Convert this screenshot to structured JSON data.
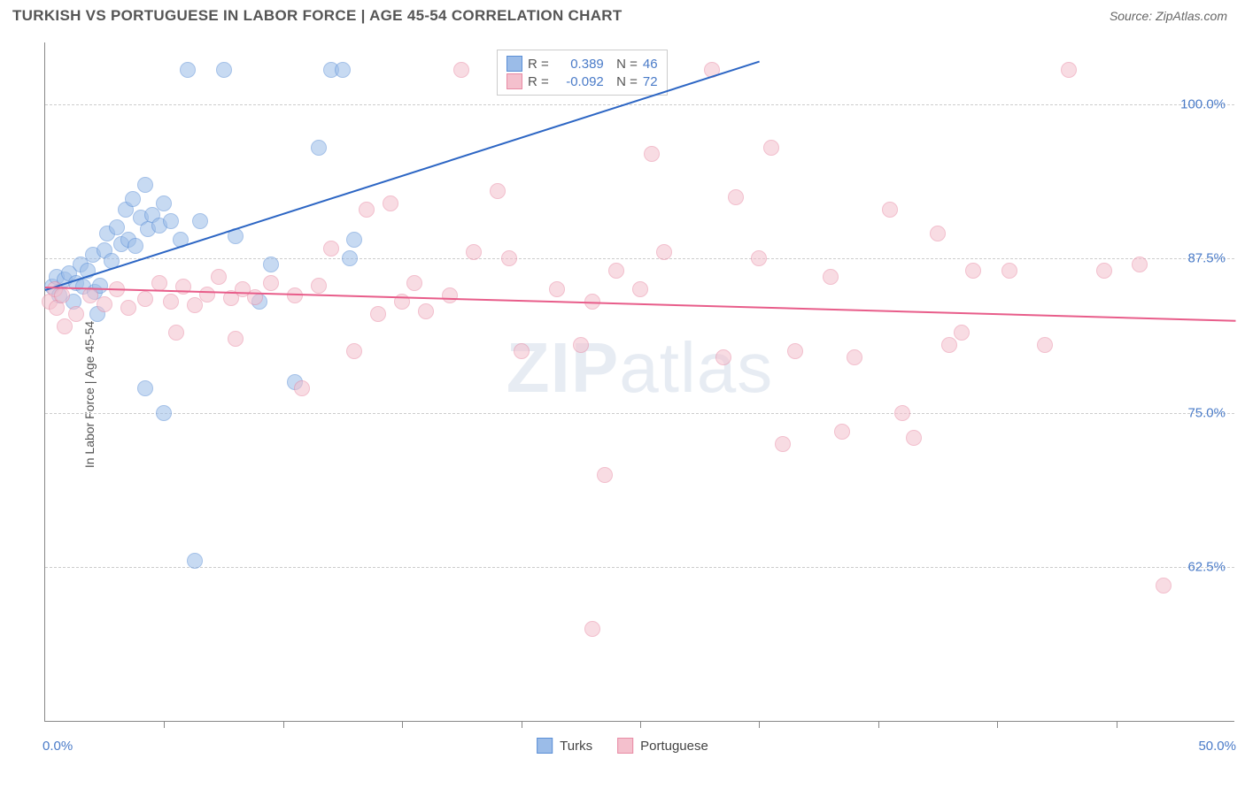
{
  "header": {
    "title": "TURKISH VS PORTUGUESE IN LABOR FORCE | AGE 45-54 CORRELATION CHART",
    "source": "Source: ZipAtlas.com"
  },
  "chart": {
    "type": "scatter",
    "axis_title_y": "In Labor Force | Age 45-54",
    "xlim": [
      0,
      50
    ],
    "ylim": [
      50,
      105
    ],
    "x_ticks": [
      5,
      10,
      15,
      20,
      25,
      30,
      35,
      40,
      45
    ],
    "y_gridlines": [
      62.5,
      75.0,
      87.5,
      100.0
    ],
    "y_tick_labels": [
      "62.5%",
      "75.0%",
      "87.5%",
      "100.0%"
    ],
    "x_label_min": "0.0%",
    "x_label_max": "50.0%",
    "background_color": "#ffffff",
    "grid_color": "#cccccc",
    "axis_color": "#888888",
    "label_color": "#4a7bc8",
    "marker_radius": 9,
    "marker_opacity": 0.55,
    "watermark": "ZIPatlas",
    "series": [
      {
        "name": "Turks",
        "fill_color": "#9bbce8",
        "stroke_color": "#5b8fd6",
        "trend_color": "#2d66c4",
        "r_value": "0.389",
        "n_value": "46",
        "trend": {
          "x1": 0,
          "y1": 85.0,
          "x2": 30,
          "y2": 103.5
        },
        "points": [
          {
            "x": 0.3,
            "y": 85.2
          },
          {
            "x": 0.5,
            "y": 86.0
          },
          {
            "x": 0.6,
            "y": 84.5
          },
          {
            "x": 0.8,
            "y": 85.8
          },
          {
            "x": 1.0,
            "y": 86.3
          },
          {
            "x": 1.2,
            "y": 84.0
          },
          {
            "x": 1.3,
            "y": 85.5
          },
          {
            "x": 1.5,
            "y": 87.0
          },
          {
            "x": 1.6,
            "y": 85.2
          },
          {
            "x": 1.8,
            "y": 86.5
          },
          {
            "x": 2.0,
            "y": 87.8
          },
          {
            "x": 2.1,
            "y": 84.8
          },
          {
            "x": 2.3,
            "y": 85.3
          },
          {
            "x": 2.5,
            "y": 88.2
          },
          {
            "x": 2.6,
            "y": 89.5
          },
          {
            "x": 2.8,
            "y": 87.3
          },
          {
            "x": 3.0,
            "y": 90.0
          },
          {
            "x": 3.2,
            "y": 88.7
          },
          {
            "x": 3.4,
            "y": 91.5
          },
          {
            "x": 3.5,
            "y": 89.0
          },
          {
            "x": 3.7,
            "y": 92.3
          },
          {
            "x": 3.8,
            "y": 88.5
          },
          {
            "x": 4.0,
            "y": 90.8
          },
          {
            "x": 4.2,
            "y": 93.5
          },
          {
            "x": 4.3,
            "y": 89.9
          },
          {
            "x": 4.5,
            "y": 91.0
          },
          {
            "x": 4.8,
            "y": 90.2
          },
          {
            "x": 5.0,
            "y": 92.0
          },
          {
            "x": 5.3,
            "y": 90.5
          },
          {
            "x": 5.7,
            "y": 89.0
          },
          {
            "x": 6.0,
            "y": 102.8
          },
          {
            "x": 6.5,
            "y": 90.5
          },
          {
            "x": 7.5,
            "y": 102.8
          },
          {
            "x": 8.0,
            "y": 89.3
          },
          {
            "x": 4.2,
            "y": 77.0
          },
          {
            "x": 5.0,
            "y": 75.0
          },
          {
            "x": 9.0,
            "y": 84.0
          },
          {
            "x": 9.5,
            "y": 87.0
          },
          {
            "x": 10.5,
            "y": 77.5
          },
          {
            "x": 11.5,
            "y": 96.5
          },
          {
            "x": 12.0,
            "y": 102.8
          },
          {
            "x": 12.5,
            "y": 102.8
          },
          {
            "x": 12.8,
            "y": 87.5
          },
          {
            "x": 13.0,
            "y": 89.0
          },
          {
            "x": 6.3,
            "y": 63.0
          },
          {
            "x": 2.2,
            "y": 83.0
          }
        ]
      },
      {
        "name": "Portuguese",
        "fill_color": "#f4c0cd",
        "stroke_color": "#e88ba5",
        "trend_color": "#e85d8a",
        "r_value": "-0.092",
        "n_value": "72",
        "trend": {
          "x1": 0,
          "y1": 85.2,
          "x2": 50,
          "y2": 82.5
        },
        "points": [
          {
            "x": 0.2,
            "y": 84.0
          },
          {
            "x": 0.4,
            "y": 85.0
          },
          {
            "x": 0.5,
            "y": 83.5
          },
          {
            "x": 0.7,
            "y": 84.5
          },
          {
            "x": 1.3,
            "y": 83.0
          },
          {
            "x": 1.9,
            "y": 84.5
          },
          {
            "x": 2.5,
            "y": 83.8
          },
          {
            "x": 3.0,
            "y": 85.0
          },
          {
            "x": 3.5,
            "y": 83.5
          },
          {
            "x": 4.2,
            "y": 84.2
          },
          {
            "x": 4.8,
            "y": 85.5
          },
          {
            "x": 5.3,
            "y": 84.0
          },
          {
            "x": 5.8,
            "y": 85.2
          },
          {
            "x": 6.3,
            "y": 83.7
          },
          {
            "x": 6.8,
            "y": 84.6
          },
          {
            "x": 7.3,
            "y": 86.0
          },
          {
            "x": 7.8,
            "y": 84.3
          },
          {
            "x": 8.3,
            "y": 85.0
          },
          {
            "x": 8.8,
            "y": 84.4
          },
          {
            "x": 9.5,
            "y": 85.5
          },
          {
            "x": 5.5,
            "y": 81.5
          },
          {
            "x": 8.0,
            "y": 81.0
          },
          {
            "x": 10.5,
            "y": 84.5
          },
          {
            "x": 11.5,
            "y": 85.3
          },
          {
            "x": 12.0,
            "y": 88.3
          },
          {
            "x": 13.5,
            "y": 91.5
          },
          {
            "x": 14.0,
            "y": 83.0
          },
          {
            "x": 14.5,
            "y": 92.0
          },
          {
            "x": 15.0,
            "y": 84.0
          },
          {
            "x": 15.5,
            "y": 85.5
          },
          {
            "x": 16.0,
            "y": 83.2
          },
          {
            "x": 10.8,
            "y": 77.0
          },
          {
            "x": 17.0,
            "y": 84.5
          },
          {
            "x": 17.5,
            "y": 102.8
          },
          {
            "x": 18.0,
            "y": 88.0
          },
          {
            "x": 19.0,
            "y": 93.0
          },
          {
            "x": 19.5,
            "y": 87.5
          },
          {
            "x": 20.0,
            "y": 80.0
          },
          {
            "x": 21.5,
            "y": 85.0
          },
          {
            "x": 22.5,
            "y": 80.5
          },
          {
            "x": 23.0,
            "y": 84.0
          },
          {
            "x": 23.5,
            "y": 70.0
          },
          {
            "x": 24.0,
            "y": 86.5
          },
          {
            "x": 25.0,
            "y": 85.0
          },
          {
            "x": 25.5,
            "y": 96.0
          },
          {
            "x": 26.0,
            "y": 88.0
          },
          {
            "x": 28.0,
            "y": 102.8
          },
          {
            "x": 28.5,
            "y": 79.5
          },
          {
            "x": 29.0,
            "y": 92.5
          },
          {
            "x": 30.0,
            "y": 87.5
          },
          {
            "x": 30.5,
            "y": 96.5
          },
          {
            "x": 31.0,
            "y": 72.5
          },
          {
            "x": 31.5,
            "y": 80.0
          },
          {
            "x": 33.0,
            "y": 86.0
          },
          {
            "x": 33.5,
            "y": 73.5
          },
          {
            "x": 34.0,
            "y": 79.5
          },
          {
            "x": 35.5,
            "y": 91.5
          },
          {
            "x": 36.0,
            "y": 75.0
          },
          {
            "x": 36.5,
            "y": 73.0
          },
          {
            "x": 37.5,
            "y": 89.5
          },
          {
            "x": 38.0,
            "y": 80.5
          },
          {
            "x": 38.5,
            "y": 81.5
          },
          {
            "x": 39.0,
            "y": 86.5
          },
          {
            "x": 40.5,
            "y": 86.5
          },
          {
            "x": 42.0,
            "y": 80.5
          },
          {
            "x": 43.0,
            "y": 102.8
          },
          {
            "x": 44.5,
            "y": 86.5
          },
          {
            "x": 46.0,
            "y": 87.0
          },
          {
            "x": 47.0,
            "y": 61.0
          },
          {
            "x": 23.0,
            "y": 57.5
          },
          {
            "x": 13.0,
            "y": 80.0
          },
          {
            "x": 0.8,
            "y": 82.0
          }
        ]
      }
    ],
    "legend_bottom": [
      {
        "label": "Turks",
        "fill": "#9bbce8",
        "stroke": "#5b8fd6"
      },
      {
        "label": "Portuguese",
        "fill": "#f4c0cd",
        "stroke": "#e88ba5"
      }
    ]
  }
}
